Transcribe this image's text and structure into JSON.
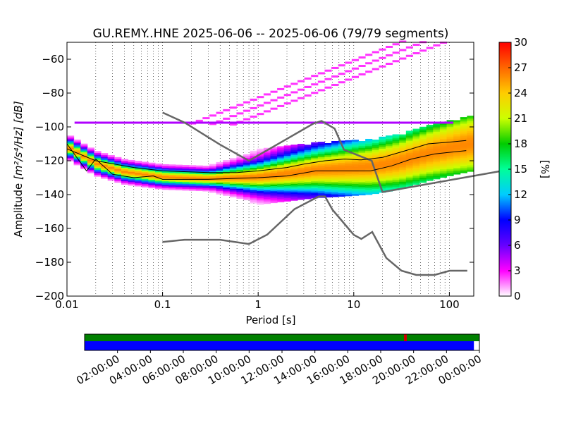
{
  "chart_data": [
    {
      "type": "heatmap",
      "title": "GU.REMY..HNE   2025-06-06 -- 2025-06-06  (79/79 segments)",
      "xlabel": "Period [s]",
      "ylabel_prefix": "Amplitude ",
      "ylabel_unit": "[m²/s⁴/Hz] [dB]",
      "x_scale": "log",
      "xlim": [
        0.01,
        180
      ],
      "ylim": [
        -200,
        -50
      ],
      "x_ticks": [
        0.01,
        0.1,
        1,
        10,
        100
      ],
      "x_tick_labels": [
        "0.01",
        "0.1",
        "1",
        "10",
        "100"
      ],
      "y_ticks": [
        -200,
        -180,
        -160,
        -140,
        -120,
        -100,
        -80,
        -60
      ],
      "y_tick_labels": [
        "−200",
        "−180",
        "−160",
        "−140",
        "−120",
        "−100",
        "−80",
        "−60"
      ],
      "grid": "dotted vertical",
      "noise_model_color": "#666666",
      "high_noise_model": {
        "x": [
          0.1,
          0.17,
          0.4,
          0.8,
          3.8,
          4.6,
          6.3,
          7.9,
          15.4,
          20,
          354.8
        ],
        "y": [
          -91.5,
          -97.4,
          -110.5,
          -120,
          -98,
          -96.5,
          -101,
          -113.5,
          -120,
          -138.5,
          -126
        ]
      },
      "low_noise_model": {
        "x": [
          0.1,
          0.17,
          0.4,
          0.8,
          1.24,
          2.4,
          4.3,
          5,
          6,
          10,
          12,
          15.6,
          21.9,
          31.6,
          45,
          70,
          101,
          154
        ],
        "y": [
          -168,
          -166.7,
          -166.7,
          -169.2,
          -163.7,
          -148.6,
          -141.1,
          -141.1,
          -149,
          -163.8,
          -166.2,
          -162.1,
          -177.5,
          -185,
          -187.5,
          -187.5,
          -185,
          -185
        ]
      },
      "median_curve": {
        "x": [
          0.01,
          0.02,
          0.05,
          0.1,
          0.3,
          0.6,
          1,
          2,
          3,
          5,
          8,
          12,
          20,
          35,
          60,
          100,
          150
        ],
        "y": [
          -113,
          -120,
          -124,
          -126,
          -127,
          -127,
          -126,
          -124,
          -122,
          -120,
          -119,
          -119.5,
          -118,
          -114,
          -110,
          -109,
          -108
        ]
      },
      "min_curve": {
        "x": [
          0.01,
          0.016,
          0.02,
          0.03,
          0.05,
          0.08,
          0.1,
          0.3,
          1,
          2,
          4,
          8,
          15,
          25,
          40,
          70,
          150
        ],
        "y": [
          -110,
          -126,
          -119,
          -128,
          -130,
          -129,
          -131,
          -131,
          -130,
          -129,
          -126,
          -126,
          -126,
          -123,
          -119,
          -116,
          -114
        ]
      },
      "mode_band": {
        "x": [
          0.01,
          0.02,
          0.04,
          0.1,
          0.3,
          1,
          2,
          4,
          8,
          15,
          30,
          60,
          120,
          180
        ],
        "y": [
          -112,
          -122,
          -127,
          -130,
          -131,
          -130,
          -128,
          -126,
          -125,
          -124,
          -121,
          -116,
          -112,
          -110
        ]
      },
      "instrument_line_y": -97.5,
      "colorbar": {
        "label": "[%]",
        "range": [
          0,
          30
        ],
        "ticks": [
          0,
          3,
          6,
          9,
          12,
          15,
          18,
          21,
          24,
          27,
          30
        ],
        "colormap": [
          "#ffffff",
          "#ff00ff",
          "#6600ff",
          "#0000ff",
          "#00ccff",
          "#00ff99",
          "#00cc00",
          "#ccff00",
          "#ffcc00",
          "#ff6600",
          "#ff0000"
        ]
      }
    },
    {
      "type": "timeline",
      "time_labels": [
        "02:00:00",
        "04:00:00",
        "06:00:00",
        "08:00:00",
        "10:00:00",
        "12:00:00",
        "14:00:00",
        "16:00:00",
        "18:00:00",
        "20:00:00",
        "22:00:00",
        "00:00:00"
      ],
      "data_available_color": "#0000ff",
      "coverage_color": "#008000",
      "gap_marker_color": "#cc0000",
      "data_fraction": 0.986
    }
  ]
}
